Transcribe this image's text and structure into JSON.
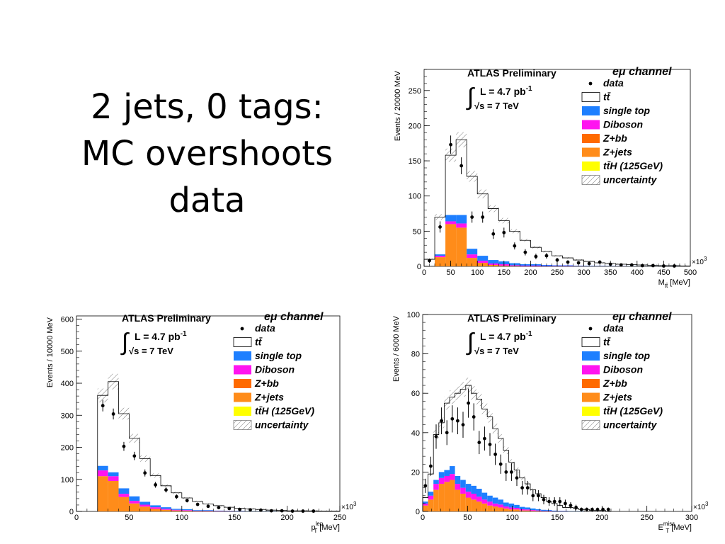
{
  "slide": {
    "title_lines": [
      "2 jets, 0 tags:",
      "MC overshoots",
      "data"
    ]
  },
  "legend": {
    "channel": "eμ channel",
    "experiment": "ATLAS Preliminary",
    "lumi": "L = 4.7 pb",
    "lumi_exp": "-1",
    "energy": "√s = 7 TeV",
    "entries": [
      {
        "label": "data",
        "kind": "marker",
        "color": "#000000"
      },
      {
        "label": "tt̄",
        "kind": "box",
        "color": "#ffffff"
      },
      {
        "label": "single top",
        "kind": "box",
        "color": "#1e7fff"
      },
      {
        "label": "Diboson",
        "kind": "box",
        "color": "#ff14f0"
      },
      {
        "label": "Z+bb",
        "kind": "box",
        "color": "#ff6a00"
      },
      {
        "label": "Z+jets",
        "kind": "box",
        "color": "#ff8c1a"
      },
      {
        "label": "tt̄H (125GeV)",
        "kind": "box",
        "color": "#ffff00"
      },
      {
        "label": "uncertainty",
        "kind": "hatch",
        "color": "#666666"
      }
    ]
  },
  "chart_data": [
    {
      "type": "bar",
      "name": "mtt",
      "xlabel": "M",
      "xlabel_sub": "tt̄",
      "xlabel_unit": " [MeV]",
      "ylabel": "Events / 20000 MeV",
      "xlim": [
        0,
        500
      ],
      "ylim": [
        0,
        280
      ],
      "x_multiplier": "×10",
      "x_multiplier_exp": "3",
      "xticks": [
        0,
        50,
        100,
        150,
        200,
        250,
        300,
        350,
        400,
        450,
        500
      ],
      "yticks": [
        0,
        50,
        100,
        150,
        200,
        250
      ],
      "bin_edges": [
        0,
        20,
        40,
        60,
        80,
        100,
        120,
        140,
        160,
        180,
        200,
        220,
        240,
        260,
        280,
        300,
        320,
        340,
        360,
        380,
        400,
        420,
        440,
        460,
        480,
        500
      ],
      "stack_colors": [
        "#ff8c1a",
        "#ff6a00",
        "#ff14f0",
        "#1e7fff"
      ],
      "stack_names": [
        "Z+jets",
        "Z+bb",
        "Diboson",
        "single top"
      ],
      "stacks": [
        [
          0,
          13,
          60,
          55,
          12,
          5,
          2,
          1,
          0.5,
          0,
          0,
          0,
          0,
          0,
          0,
          0,
          0,
          0,
          0,
          0,
          0,
          0,
          0,
          0,
          0
        ],
        [
          0,
          0,
          0,
          0,
          0,
          0,
          0,
          0,
          0,
          0,
          0,
          0,
          0,
          0,
          0,
          0,
          0,
          0,
          0,
          0,
          0,
          0,
          0,
          0,
          0
        ],
        [
          0,
          2,
          4,
          6,
          5,
          3,
          2,
          2,
          1,
          1,
          1,
          0.5,
          0.5,
          0.5,
          0.3,
          0.2,
          0.2,
          0.1,
          0.1,
          0,
          0,
          0,
          0,
          0,
          0
        ],
        [
          0,
          2,
          9,
          12,
          8,
          7,
          5,
          4,
          3,
          2,
          2,
          1.5,
          1,
          1,
          0.5,
          0.5,
          0.4,
          0.3,
          0.2,
          0.2,
          0.1,
          0.1,
          0.1,
          0.1,
          0
        ]
      ],
      "total": [
        10,
        70,
        158,
        180,
        128,
        103,
        82,
        65,
        50,
        37,
        27,
        21,
        15,
        12,
        9,
        7,
        5,
        4,
        3,
        2.5,
        2,
        1.5,
        1,
        1,
        0.5
      ],
      "data_x": [
        10,
        30,
        50,
        70,
        90,
        110,
        130,
        150,
        170,
        190,
        210,
        230,
        250,
        270,
        290,
        310,
        330,
        350,
        370,
        390,
        410,
        430,
        450,
        470,
        490
      ],
      "data_y": [
        8,
        56,
        173,
        143,
        70,
        70,
        46,
        48,
        29,
        20,
        14,
        15,
        9,
        6,
        5,
        4,
        6,
        3,
        2,
        2,
        1,
        1,
        0.5,
        0.5,
        0
      ],
      "data_err": [
        3,
        8,
        13,
        12,
        8,
        8,
        7,
        7,
        5,
        4.5,
        4,
        4,
        3,
        2.5,
        2.2,
        2,
        2.4,
        1.7,
        1.4,
        1.4,
        1,
        1,
        0.7,
        0.7,
        0
      ]
    },
    {
      "type": "bar",
      "name": "ptlep",
      "xlabel": "p",
      "xlabel_sub": "T",
      "xlabel_sup": "lep",
      "xlabel_unit": " [MeV]",
      "ylabel": "Events / 10000 MeV",
      "xlim": [
        0,
        250
      ],
      "ylim": [
        0,
        610
      ],
      "x_multiplier": "×10",
      "x_multiplier_exp": "3",
      "xticks": [
        0,
        50,
        100,
        150,
        200,
        250
      ],
      "yticks": [
        0,
        100,
        200,
        300,
        400,
        500,
        600
      ],
      "bin_edges": [
        20,
        30,
        40,
        50,
        60,
        70,
        80,
        90,
        100,
        110,
        120,
        130,
        140,
        150,
        160,
        170,
        180,
        190,
        200,
        210,
        220,
        230,
        240,
        250
      ],
      "stack_colors": [
        "#ff8c1a",
        "#ff6a00",
        "#ff14f0",
        "#1e7fff"
      ],
      "stack_names": [
        "Z+jets",
        "Z+bb",
        "Diboson",
        "single top"
      ],
      "stacks": [
        [
          110,
          95,
          45,
          25,
          15,
          8,
          5,
          3,
          2,
          1,
          1,
          0.5,
          0.5,
          0,
          0,
          0,
          0,
          0,
          0,
          0,
          0,
          0,
          0
        ],
        [
          0,
          0,
          0,
          0,
          0,
          0,
          0,
          0,
          0,
          0,
          0,
          0,
          0,
          0,
          0,
          0,
          0,
          0,
          0,
          0,
          0,
          0,
          0
        ],
        [
          18,
          15,
          10,
          8,
          6,
          5,
          3,
          2,
          2,
          1,
          1,
          1,
          0.5,
          0.5,
          0,
          0,
          0,
          0,
          0,
          0,
          0,
          0,
          0
        ],
        [
          14,
          12,
          17,
          14,
          9,
          6,
          5,
          3,
          3,
          2,
          2,
          1,
          1,
          1,
          0.5,
          0.5,
          0.5,
          0,
          0,
          0,
          0,
          0,
          0
        ]
      ],
      "total": [
        362,
        405,
        305,
        228,
        165,
        112,
        80,
        58,
        42,
        31,
        23,
        18,
        13,
        10,
        8,
        6,
        4,
        3,
        2,
        2,
        1.5,
        1,
        1
      ],
      "data_x": [
        25,
        35,
        45,
        55,
        65,
        75,
        85,
        95,
        105,
        115,
        125,
        135,
        145,
        155,
        165,
        175,
        185,
        195,
        205,
        215,
        225,
        235,
        245
      ],
      "data_y": [
        330,
        304,
        203,
        173,
        120,
        83,
        67,
        46,
        34,
        22,
        16,
        12,
        9,
        6,
        5,
        4,
        2,
        2,
        1,
        1,
        1,
        0,
        0
      ],
      "data_err": [
        18,
        17,
        14,
        13,
        11,
        9,
        8,
        7,
        6,
        4.7,
        4,
        3.5,
        3,
        2.4,
        2.2,
        2,
        1.4,
        1.4,
        1,
        1,
        1,
        0,
        0
      ]
    },
    {
      "type": "bar",
      "name": "etmiss",
      "xlabel": "E",
      "xlabel_sub": "T",
      "xlabel_sup": "miss",
      "xlabel_unit": " [MeV]",
      "ylabel": "Events / 6000 MeV",
      "xlim": [
        0,
        300
      ],
      "ylim": [
        0,
        100
      ],
      "x_multiplier": "×10",
      "x_multiplier_exp": "3",
      "xticks": [
        0,
        50,
        100,
        150,
        200,
        250,
        300
      ],
      "yticks": [
        0,
        20,
        40,
        60,
        80,
        100
      ],
      "bin_edges": [
        0,
        6,
        12,
        18,
        24,
        30,
        36,
        42,
        48,
        54,
        60,
        66,
        72,
        78,
        84,
        90,
        96,
        102,
        108,
        114,
        120,
        126,
        132,
        138,
        144,
        150,
        156,
        162,
        168,
        174,
        180,
        186,
        192,
        198,
        204,
        210
      ],
      "stack_colors": [
        "#ff8c1a",
        "#ff6a00",
        "#ff14f0",
        "#1e7fff"
      ],
      "stack_names": [
        "Z+jets",
        "Z+bb",
        "Diboson",
        "single top"
      ],
      "stacks": [
        [
          3,
          6,
          11,
          14,
          15,
          16,
          11,
          9,
          7,
          6,
          5,
          4,
          3,
          2.5,
          2,
          1.5,
          1,
          1,
          0.5,
          0.5,
          0.3,
          0.2,
          0.1,
          0.1,
          0,
          0,
          0,
          0,
          0,
          0,
          0,
          0,
          0,
          0,
          0
        ],
        [
          0,
          0,
          0,
          0,
          0,
          0,
          0,
          0,
          0,
          0,
          0,
          0,
          0,
          0,
          0,
          0,
          0,
          0,
          0,
          0,
          0,
          0,
          0,
          0,
          0,
          0,
          0,
          0,
          0,
          0,
          0,
          0,
          0,
          0,
          0
        ],
        [
          1,
          2,
          3,
          3,
          3,
          3,
          3,
          3,
          3,
          3,
          2.5,
          2,
          2,
          1.5,
          1.5,
          1,
          1,
          0.8,
          0.6,
          0.5,
          0.4,
          0.3,
          0.2,
          0.2,
          0.1,
          0.1,
          0.1,
          0,
          0,
          0,
          0,
          0,
          0,
          0,
          0
        ],
        [
          1,
          2,
          2,
          3,
          3,
          4,
          4,
          4,
          4,
          4,
          4,
          3.5,
          3,
          3,
          2.5,
          2,
          2,
          1.5,
          1.2,
          1,
          0.8,
          0.6,
          0.5,
          0.4,
          0.3,
          0.2,
          0.2,
          0.1,
          0.1,
          0.1,
          0,
          0,
          0,
          0,
          0
        ]
      ],
      "total": [
        7,
        19,
        39,
        45,
        55,
        58,
        60,
        62,
        64,
        60,
        57,
        52,
        48,
        42,
        37,
        31,
        25,
        21,
        17,
        14,
        11,
        9,
        7,
        5,
        4,
        3,
        2,
        2,
        1.5,
        1,
        1,
        0.5,
        0.5,
        0.5,
        0
      ],
      "data_x": [
        3,
        9,
        15,
        21,
        27,
        33,
        39,
        45,
        51,
        57,
        63,
        69,
        75,
        81,
        87,
        93,
        99,
        105,
        111,
        117,
        123,
        129,
        135,
        141,
        147,
        153,
        159,
        165,
        171,
        177,
        183,
        189,
        195,
        201,
        207
      ],
      "data_y": [
        13,
        23,
        38,
        46,
        40,
        47,
        46,
        44,
        55,
        48,
        35,
        37,
        34,
        29,
        24,
        20,
        20,
        17,
        12,
        12,
        8,
        8,
        6,
        5,
        5,
        5,
        4,
        3,
        2,
        1,
        1,
        1,
        1,
        1,
        1
      ],
      "data_err": [
        3.6,
        4.8,
        6.2,
        6.8,
        6.3,
        6.9,
        6.8,
        6.6,
        7.4,
        6.9,
        5.9,
        6.1,
        5.8,
        5.4,
        4.9,
        4.5,
        4.5,
        4.1,
        3.5,
        3.5,
        2.8,
        2.8,
        2.4,
        2.2,
        2.2,
        2.2,
        2,
        1.7,
        1.4,
        1,
        1,
        1,
        1,
        1,
        1
      ]
    }
  ]
}
